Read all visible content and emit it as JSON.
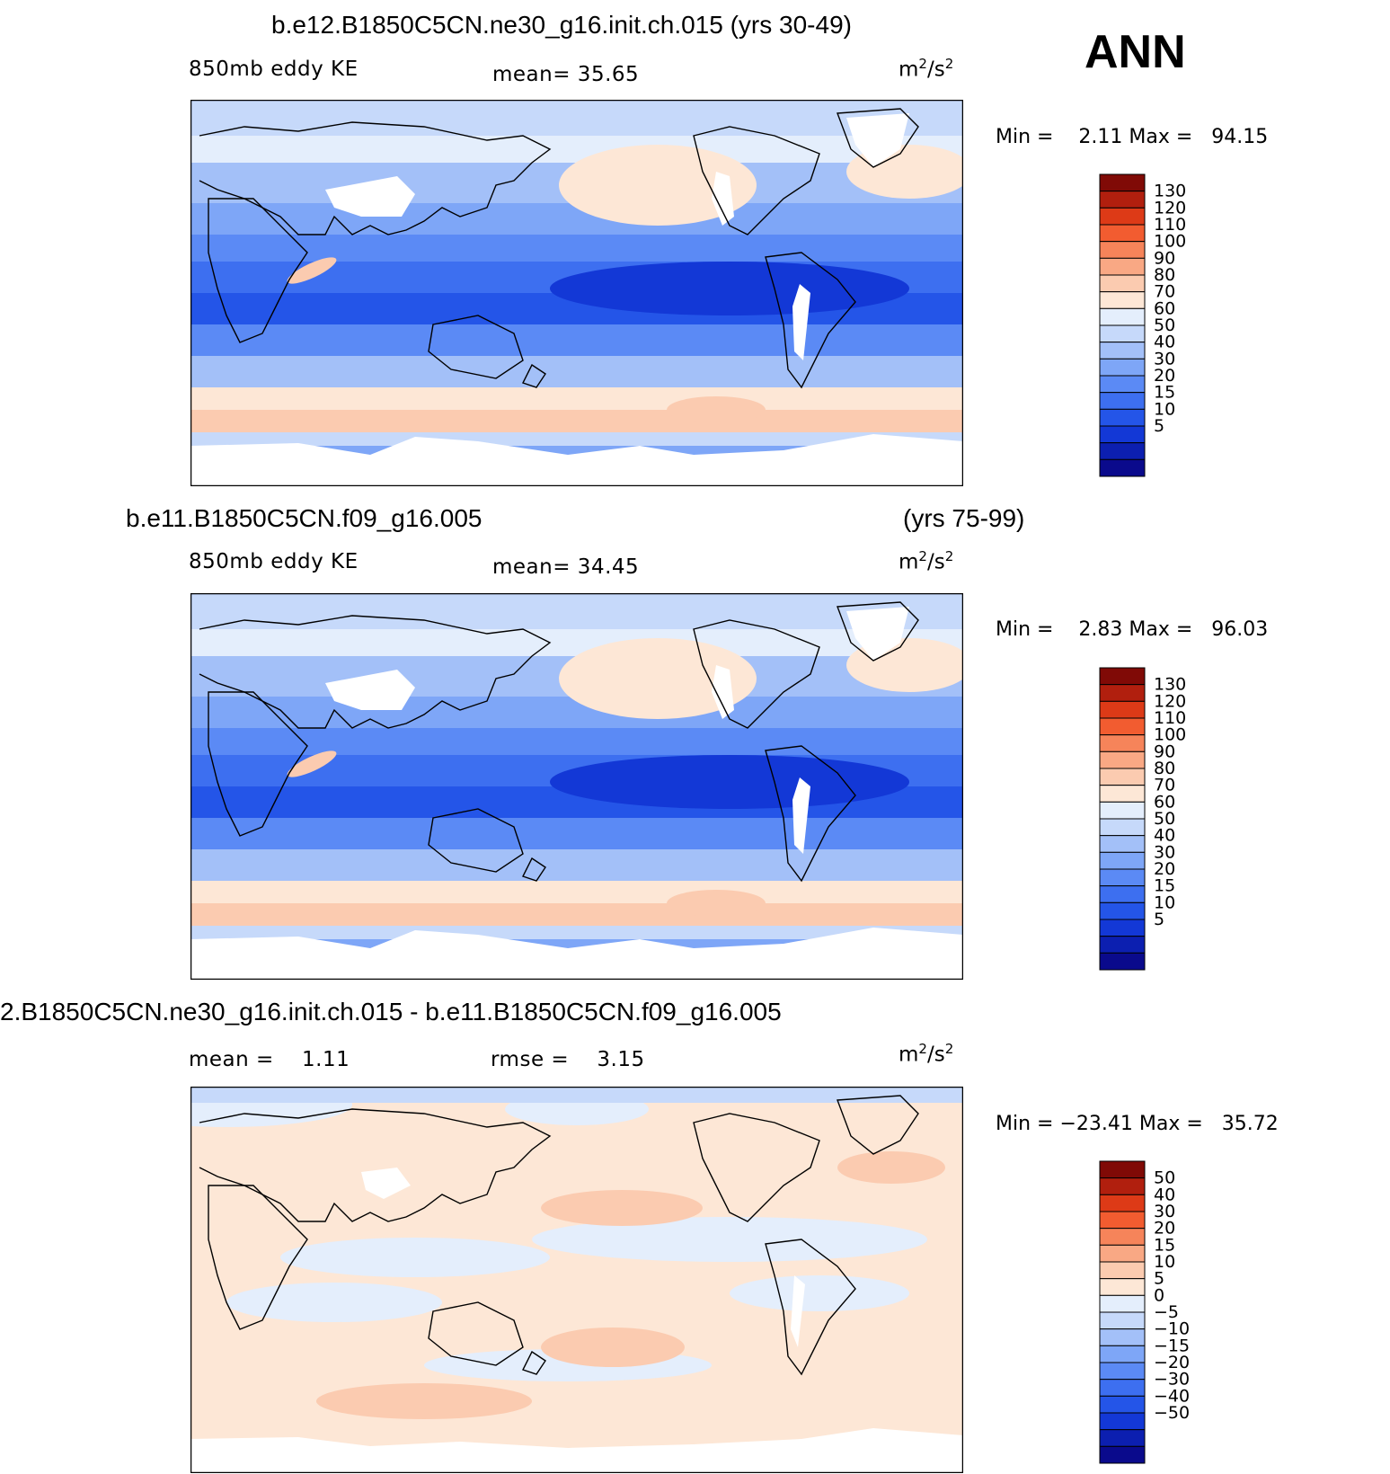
{
  "season": "ANN",
  "panels": [
    {
      "title": "b.e12.B1850C5CN.ne30_g16.init.ch.015 (yrs 30-49)",
      "years": "",
      "left_label": "850mb eddy KE",
      "center_label": "mean=   35.65",
      "right_label": "",
      "units": "m",
      "units_sup1": "2",
      "units_mid": "/s",
      "units_sup2": "2",
      "stat_text": "Min =    2.11 Max =   94.15",
      "colorbar_id": "abs"
    },
    {
      "title": "b.e11.B1850C5CN.f09_g16.005",
      "years": "(yrs 75-99)",
      "left_label": "850mb eddy KE",
      "center_label": "mean=   34.45",
      "right_label": "",
      "units": "m",
      "units_sup1": "2",
      "units_mid": "/s",
      "units_sup2": "2",
      "stat_text": "Min =    2.83 Max =   96.03",
      "colorbar_id": "abs"
    },
    {
      "title": "2.B1850C5CN.ne30_g16.init.ch.015 - b.e11.B1850C5CN.f09_g16.005",
      "years": "",
      "left_label": "mean =    1.11",
      "center_label": "rmse =    3.15",
      "right_label": "",
      "units": "m",
      "units_sup1": "2",
      "units_mid": "/s",
      "units_sup2": "2",
      "stat_text": "Min = −23.41 Max =   35.72",
      "colorbar_id": "diff"
    }
  ],
  "chart_data": [
    {
      "type": "heatmap",
      "title": "b.e12.B1850C5CN.ne30_g16.init.ch.015 (yrs 30-49)",
      "variable": "850mb eddy KE",
      "mean": 35.65,
      "min": 2.11,
      "max": 94.15,
      "colorbar_levels": [
        5,
        10,
        15,
        20,
        30,
        40,
        50,
        60,
        70,
        80,
        90,
        100,
        110,
        120,
        130
      ],
      "colorbar_colors": [
        "#0a0a8c",
        "#0c1fb0",
        "#1338d6",
        "#2455e8",
        "#3d6ff0",
        "#5b8af5",
        "#7ea6f7",
        "#a3c0f8",
        "#c6d9fa",
        "#e4eefc",
        "#fde7d6",
        "#fbcbb0",
        "#f9a884",
        "#f6845a",
        "#f25c30",
        "#dd3a17",
        "#b11f0e",
        "#800a06"
      ],
      "pattern": "zonal_bands"
    },
    {
      "type": "heatmap",
      "title": "b.e11.B1850C5CN.f09_g16.005",
      "variable": "850mb eddy KE",
      "mean": 34.45,
      "min": 2.83,
      "max": 96.03,
      "colorbar_levels": [
        5,
        10,
        15,
        20,
        30,
        40,
        50,
        60,
        70,
        80,
        90,
        100,
        110,
        120,
        130
      ],
      "colorbar_colors": [
        "#0a0a8c",
        "#0c1fb0",
        "#1338d6",
        "#2455e8",
        "#3d6ff0",
        "#5b8af5",
        "#7ea6f7",
        "#a3c0f8",
        "#c6d9fa",
        "#e4eefc",
        "#fde7d6",
        "#fbcbb0",
        "#f9a884",
        "#f6845a",
        "#f25c30",
        "#dd3a17",
        "#b11f0e",
        "#800a06"
      ],
      "pattern": "zonal_bands"
    },
    {
      "type": "heatmap",
      "title": "2.B1850C5CN.ne30_g16.init.ch.015 - b.e11.B1850C5CN.f09_g16.005",
      "mean": 1.11,
      "rmse": 3.15,
      "min": -23.41,
      "max": 35.72,
      "colorbar_levels": [
        50,
        40,
        30,
        20,
        15,
        10,
        5,
        0,
        -5,
        -10,
        -15,
        -20,
        -30,
        -40,
        -50
      ],
      "colorbar_colors": [
        "#800a06",
        "#b11f0e",
        "#dd3a17",
        "#f25c30",
        "#f6845a",
        "#f9a884",
        "#fbcbb0",
        "#fde7d6",
        "#e4eefc",
        "#c6d9fa",
        "#a3c0f8",
        "#7ea6f7",
        "#5b8af5",
        "#3d6ff0",
        "#2455e8",
        "#1338d6",
        "#0c1fb0",
        "#0a0a8c"
      ],
      "pattern": "diff"
    }
  ],
  "colors": {
    "land_missing": "#ffffff",
    "coast": "#000000"
  }
}
